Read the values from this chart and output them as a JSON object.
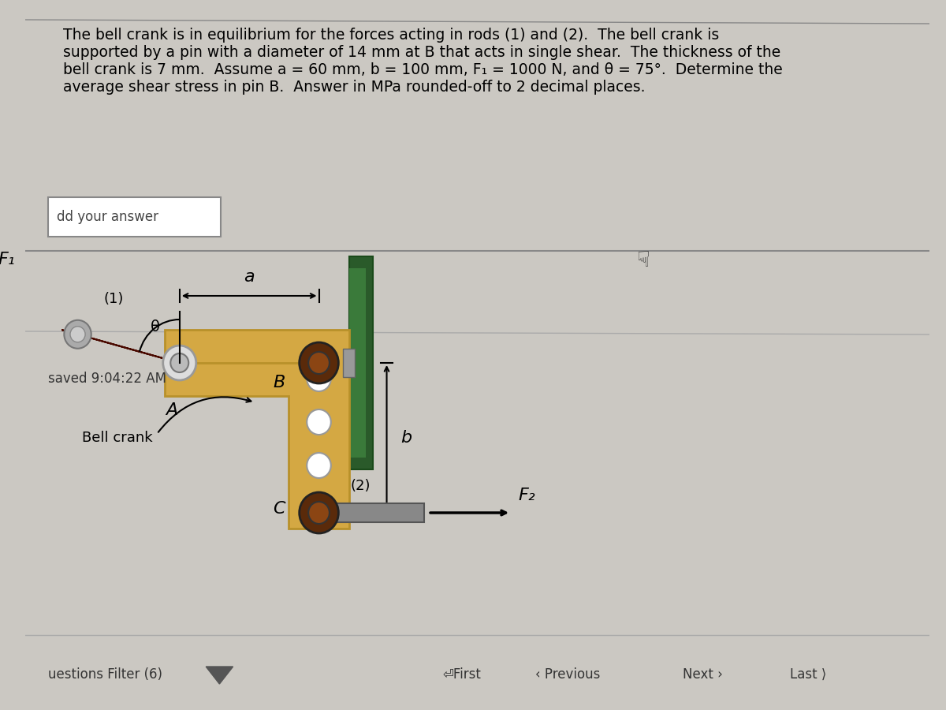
{
  "bg_color": "#cbc8c2",
  "title_lines": [
    "The bell crank is in equilibrium for the forces acting in rods (1) and (2).  The bell crank is",
    "supported by a pin with a diameter of 14 mm at B that acts in single shear.  The thickness of the",
    "bell crank is 7 mm.  Assume a = 60 mm, b = 100 mm, F₁ = 1000 N, and θ = 75°.  Determine the",
    "average shear stress in pin B.  Answer in MPa rounded-off to 2 decimal places."
  ],
  "title_fontsize": 13.5,
  "bell_crank_color": "#d4a843",
  "bell_crank_edge": "#b8912a",
  "rod_color": "#7a1a0a",
  "rod_edge": "#4a0a00",
  "rod2_color": "#888888",
  "rod2_edge": "#555555",
  "pin_outer": "#5a2a0a",
  "pin_inner": "#8B4513",
  "pin_A_outer": "#dddddd",
  "pin_A_inner": "#bbbbbb",
  "pin_B_cap": "#aaaaaa",
  "wall_dark": "#2a5a2a",
  "wall_mid": "#3a7a3a",
  "wall_light": "#4a9a4a",
  "hole_color": "#ffffff",
  "hole_edge": "#999999",
  "answer_box_text": "dd your answer",
  "saved_text": "saved 9:04:22 AM",
  "filter_text": "uestions Filter (6)",
  "F1_label": "F₁",
  "F2_label": "F₂",
  "label_a": "a",
  "label_b": "b",
  "label_A": "A",
  "label_B": "B",
  "label_C": "C",
  "label_1": "(1)",
  "label_2": "(2)",
  "label_theta": "θ",
  "label_bell_crank": "Bell crank"
}
